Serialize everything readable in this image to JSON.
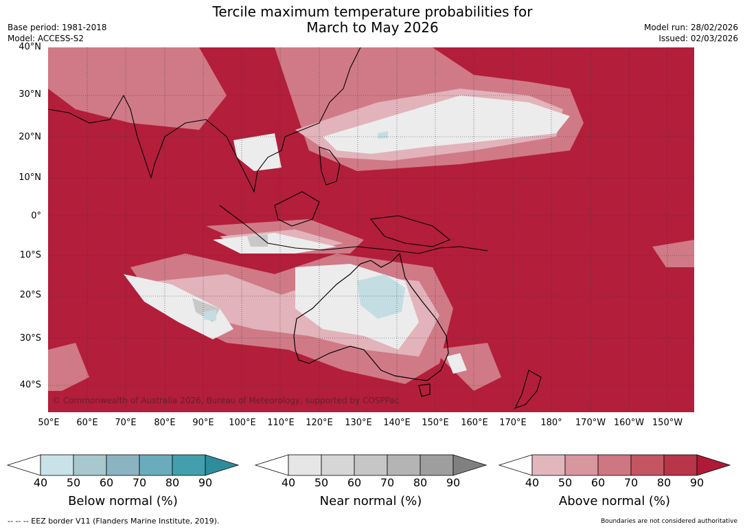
{
  "title_line1": "Tercile maximum temperature probabilities for",
  "title_line2": "March to May 2026",
  "header_left": {
    "base_period": "Base period: 1981-2018",
    "model": "Model: ACCESS-S2"
  },
  "header_right": {
    "model_run": "Model run: 28/02/2026",
    "issued": "Issued: 02/03/2026"
  },
  "map": {
    "copyright": "© Commonwealth of Australia 2026, Bureau of Meteorology, supported by COSPPac",
    "latitude_labels": [
      "40°N",
      "30°N",
      "20°N",
      "10°N",
      "0°",
      "10°S",
      "20°S",
      "30°S",
      "40°S"
    ],
    "longitude_labels": [
      "50°E",
      "60°E",
      "70°E",
      "80°E",
      "90°E",
      "100°E",
      "110°E",
      "120°E",
      "130°E",
      "140°E",
      "150°E",
      "160°E",
      "170°E",
      "180°",
      "170°W",
      "160°W",
      "150°W"
    ],
    "colors": {
      "dominant_above_normal": "#b31e3b",
      "near_normal_region": "#e6e6e6",
      "below_normal_region": "#c7e0e6",
      "coastline": "#000000",
      "gridline": "#333333"
    }
  },
  "colorbars": [
    {
      "title": "Below normal (%)",
      "ticks": [
        "40",
        "50",
        "60",
        "70",
        "80",
        "90"
      ],
      "colors": [
        "#c9e2e8",
        "#a7c8cd",
        "#8bb4c2",
        "#6aacbb",
        "#439fae",
        "#2e8c9d"
      ]
    },
    {
      "title": "Near normal (%)",
      "ticks": [
        "40",
        "50",
        "60",
        "70",
        "80",
        "90"
      ],
      "colors": [
        "#e6e6e6",
        "#d6d6d6",
        "#c6c6c6",
        "#b4b4b4",
        "#9e9e9e",
        "#808080"
      ]
    },
    {
      "title": "Above normal (%)",
      "ticks": [
        "40",
        "50",
        "60",
        "70",
        "80",
        "90"
      ],
      "colors": [
        "#e2b6bd",
        "#d8969f",
        "#ce7681",
        "#c45563",
        "#b8354a",
        "#b01a38"
      ]
    }
  ],
  "footer_left": "--  --  -- EEZ border V11 (Flanders Marine Institute, 2019).",
  "footer_right": "Boundaries are not considered authoritative"
}
